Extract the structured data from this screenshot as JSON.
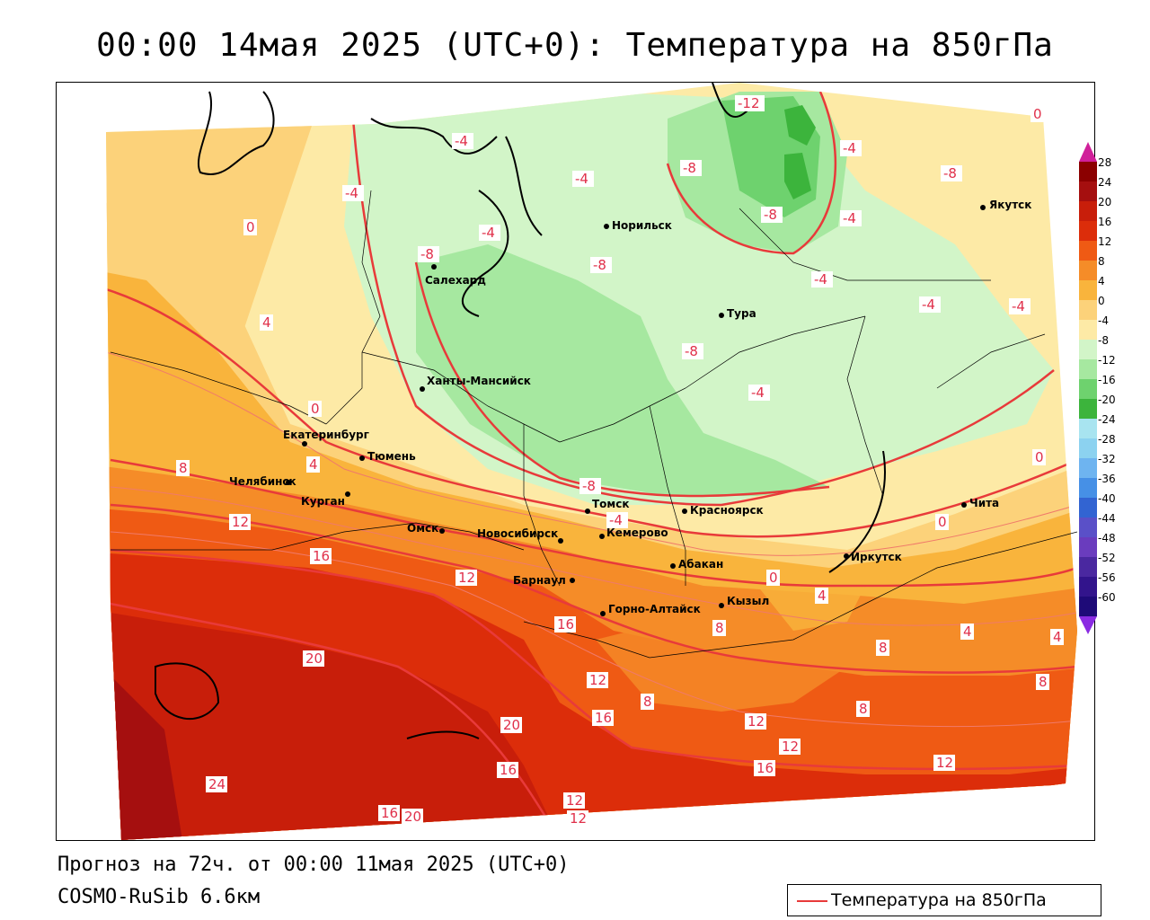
{
  "title": "00:00 14мая 2025 (UTC+0): Температура на 850гПа",
  "footer": {
    "forecast": "Прогноз на 72ч. от 00:00 11мая 2025 (UTC+0)",
    "model": "COSMO-RuSib 6.6км"
  },
  "legend": {
    "label": "Температура на 850гПа",
    "color": "#e83a3a"
  },
  "colorbar": {
    "ticks": [
      "28",
      "24",
      "20",
      "16",
      "12",
      "8",
      "4",
      "0",
      "-4",
      "-8",
      "-12",
      "-16",
      "-20",
      "-24",
      "-28",
      "-32",
      "-36",
      "-40",
      "-44",
      "-48",
      "-52",
      "-56",
      "-60"
    ],
    "colors": [
      "#8b0000",
      "#a50f0f",
      "#c81e0a",
      "#dc2d0a",
      "#ef5a14",
      "#f58c28",
      "#f9b43c",
      "#fcd27a",
      "#fdeaa6",
      "#d2f5c8",
      "#a6e8a0",
      "#6ed26e",
      "#3cb43c",
      "#a8e4f0",
      "#8cd2f0",
      "#6eb4f0",
      "#4690e6",
      "#3264d2",
      "#5a50c8",
      "#6a3cbe",
      "#4a28a0",
      "#32148c",
      "#1e0a78"
    ]
  },
  "cities": [
    {
      "name": "Норильск"
    },
    {
      "name": "Якутск"
    },
    {
      "name": "Салехард"
    },
    {
      "name": "Тура"
    },
    {
      "name": "Ханты-Мансийск"
    },
    {
      "name": "Екатеринбург"
    },
    {
      "name": "Тюмень"
    },
    {
      "name": "Челябинск"
    },
    {
      "name": "Курган"
    },
    {
      "name": "Омск"
    },
    {
      "name": "Новосибирск"
    },
    {
      "name": "Томск"
    },
    {
      "name": "Кемерово"
    },
    {
      "name": "Красноярск"
    },
    {
      "name": "Абакан"
    },
    {
      "name": "Барнаул"
    },
    {
      "name": "Горно-Алтайск"
    },
    {
      "name": "Кызыл"
    },
    {
      "name": "Иркутск"
    },
    {
      "name": "Чита"
    }
  ],
  "isotherm_labels": [
    "-12",
    "-4",
    "-4",
    "-4",
    "-4",
    "-8",
    "-8",
    "-8",
    "0",
    "0",
    "-8",
    "-8",
    "-4",
    "-4",
    "-4",
    "-4",
    "-8",
    "-4",
    "4",
    "0",
    "-4",
    "8",
    "4",
    "0",
    "-8",
    "-4",
    "12",
    "16",
    "0",
    "0",
    "12",
    "16",
    "4",
    "8",
    "4",
    "4",
    "20",
    "8",
    "8",
    "12",
    "16",
    "8",
    "20",
    "12",
    "16",
    "16",
    "12",
    "12",
    "24",
    "12",
    "16",
    "20",
    "12",
    "8"
  ]
}
